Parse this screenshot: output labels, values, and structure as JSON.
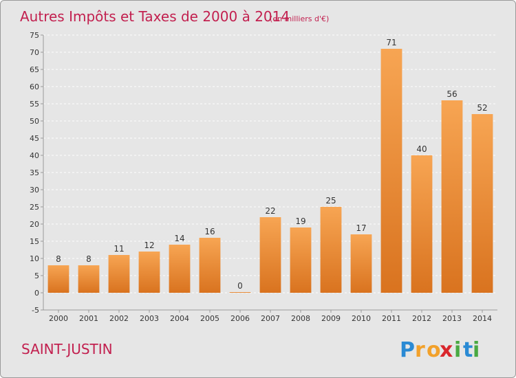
{
  "chart_data": {
    "type": "bar",
    "title": "Autres Impôts et Taxes de 2000 à 2014",
    "subtitle": "(en milliers d'€)",
    "categories": [
      "2000",
      "2001",
      "2002",
      "2003",
      "2004",
      "2005",
      "2006",
      "2007",
      "2008",
      "2009",
      "2010",
      "2011",
      "2012",
      "2013",
      "2014"
    ],
    "values": [
      8,
      8,
      11,
      12,
      14,
      16,
      0,
      22,
      19,
      25,
      17,
      71,
      40,
      56,
      52
    ],
    "data_labels": [
      "8",
      "8",
      "11",
      "12",
      "14",
      "16",
      "0",
      "22",
      "19",
      "25",
      "17",
      "71",
      "40",
      "56",
      "52"
    ],
    "ylim": [
      -5,
      75
    ],
    "yticks": [
      -5,
      0,
      5,
      10,
      15,
      20,
      25,
      30,
      35,
      40,
      45,
      50,
      55,
      60,
      65,
      70,
      75
    ],
    "ytick_labels": [
      "-5",
      "0",
      "5",
      "10",
      "15",
      "20",
      "25",
      "30",
      "35",
      "40",
      "45",
      "50",
      "55",
      "60",
      "65",
      "70",
      "75"
    ],
    "grid": true,
    "bar_color_light": "#f7a553",
    "bar_color_dark": "#d9731f"
  },
  "commune": "SAINT-JUSTIN",
  "logo": {
    "letters": [
      "P",
      "r",
      "o",
      "x",
      "i",
      "t",
      "i"
    ],
    "colors": [
      "#2a8ad4",
      "#f2a12b",
      "#f2a12b",
      "#d9262c",
      "#49a942",
      "#2a8ad4",
      "#49a942"
    ]
  },
  "colors": {
    "accent": "#c2204f",
    "background": "#e6e6e6"
  }
}
